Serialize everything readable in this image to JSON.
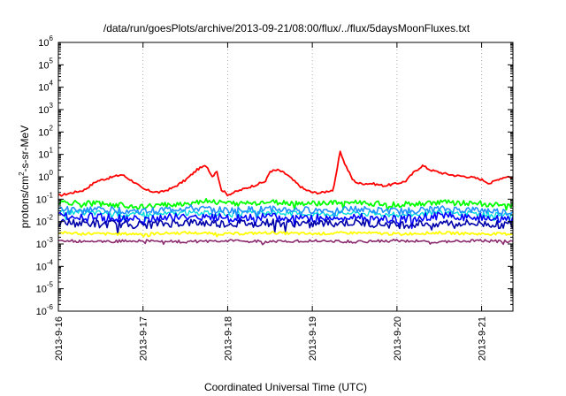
{
  "chart_data": {
    "type": "line",
    "title": "/data/run/goesPlots/archive/2013-09-21/08:00/flux/../flux/5daysMoonFluxes.txt",
    "xlabel": "Coordinated Universal Time (UTC)",
    "ylabel": {
      "pre": "protons/cm",
      "sup": "2",
      "post": "-s-sr-MeV"
    },
    "x_range_days": [
      0,
      5.37
    ],
    "x_ticks": [
      {
        "day": 0,
        "label": "2013-9-16"
      },
      {
        "day": 1,
        "label": "2013-9-17"
      },
      {
        "day": 2,
        "label": "2013-9-18"
      },
      {
        "day": 3,
        "label": "2013-9-19"
      },
      {
        "day": 4,
        "label": "2013-9-20"
      },
      {
        "day": 5,
        "label": "2013-9-21"
      }
    ],
    "y_scale": "log",
    "y_range": [
      1e-06,
      1000000.0
    ],
    "y_ticks": [
      {
        "exp": -6,
        "base": "10",
        "sup": "-6"
      },
      {
        "exp": -5,
        "base": "10",
        "sup": "-5"
      },
      {
        "exp": -4,
        "base": "10",
        "sup": "-4"
      },
      {
        "exp": -3,
        "base": "10",
        "sup": "-3"
      },
      {
        "exp": -2,
        "base": "10",
        "sup": "-2"
      },
      {
        "exp": -1,
        "base": "10",
        "sup": "-1"
      },
      {
        "exp": 0,
        "base": "10",
        "sup": "0"
      },
      {
        "exp": 1,
        "base": "10",
        "sup": "1"
      },
      {
        "exp": 2,
        "base": "10",
        "sup": "2"
      },
      {
        "exp": 3,
        "base": "10",
        "sup": "3"
      },
      {
        "exp": 4,
        "base": "10",
        "sup": "4"
      },
      {
        "exp": 5,
        "base": "10",
        "sup": "5"
      },
      {
        "exp": 6,
        "base": "10",
        "sup": "6"
      }
    ],
    "grid": true,
    "series": [
      {
        "color": "#ff0000",
        "width": 1.8,
        "jitter": 0.05,
        "points": [
          [
            0,
            -0.85
          ],
          [
            0.15,
            -0.72
          ],
          [
            0.3,
            -0.6
          ],
          [
            0.45,
            -0.2
          ],
          [
            0.6,
            -0.05
          ],
          [
            0.75,
            0.1
          ],
          [
            0.9,
            -0.25
          ],
          [
            1.0,
            -0.55
          ],
          [
            1.1,
            -0.65
          ],
          [
            1.2,
            -0.7
          ],
          [
            1.35,
            -0.5
          ],
          [
            1.5,
            -0.15
          ],
          [
            1.65,
            0.35
          ],
          [
            1.75,
            0.5
          ],
          [
            1.82,
            0.0
          ],
          [
            1.87,
            0.3
          ],
          [
            1.92,
            -0.55
          ],
          [
            2.0,
            -0.8
          ],
          [
            2.15,
            -0.6
          ],
          [
            2.3,
            -0.4
          ],
          [
            2.45,
            -0.2
          ],
          [
            2.5,
            0.25
          ],
          [
            2.6,
            0.3
          ],
          [
            2.7,
            0.1
          ],
          [
            2.8,
            -0.25
          ],
          [
            2.9,
            -0.55
          ],
          [
            3.0,
            -0.7
          ],
          [
            3.1,
            -0.72
          ],
          [
            3.2,
            -0.62
          ],
          [
            3.25,
            -0.6
          ],
          [
            3.3,
            0.5
          ],
          [
            3.33,
            1.15
          ],
          [
            3.37,
            0.7
          ],
          [
            3.42,
            0.3
          ],
          [
            3.48,
            -0.15
          ],
          [
            3.55,
            -0.3
          ],
          [
            3.7,
            -0.3
          ],
          [
            3.85,
            -0.4
          ],
          [
            4.0,
            -0.3
          ],
          [
            4.1,
            -0.2
          ],
          [
            4.2,
            0.2
          ],
          [
            4.3,
            0.5
          ],
          [
            4.4,
            0.3
          ],
          [
            4.55,
            0.15
          ],
          [
            4.7,
            0.05
          ],
          [
            4.85,
            0.0
          ],
          [
            5.0,
            -0.12
          ],
          [
            5.1,
            -0.3
          ],
          [
            5.2,
            -0.1
          ],
          [
            5.3,
            0.02
          ],
          [
            5.37,
            -0.05
          ]
        ]
      },
      {
        "color": "#00ff00",
        "width": 1.8,
        "jitter": 0.12,
        "points": [
          [
            0,
            -1.15
          ],
          [
            0.5,
            -1.2
          ],
          [
            1.0,
            -1.35
          ],
          [
            1.3,
            -1.25
          ],
          [
            1.5,
            -1.2
          ],
          [
            1.75,
            -1.05
          ],
          [
            2.0,
            -1.2
          ],
          [
            2.5,
            -1.15
          ],
          [
            3.0,
            -1.2
          ],
          [
            3.5,
            -1.15
          ],
          [
            4.0,
            -1.25
          ],
          [
            4.5,
            -1.15
          ],
          [
            5.0,
            -1.2
          ],
          [
            5.37,
            -1.3
          ]
        ]
      },
      {
        "color": "#00dddd",
        "width": 1.4,
        "jitter": 0.12,
        "points": [
          [
            0,
            -1.6
          ],
          [
            0.5,
            -1.6
          ],
          [
            1.0,
            -1.7
          ],
          [
            1.5,
            -1.6
          ],
          [
            2.0,
            -1.65
          ],
          [
            2.5,
            -1.6
          ],
          [
            3.0,
            -1.65
          ],
          [
            3.5,
            -1.6
          ],
          [
            4.0,
            -1.7
          ],
          [
            4.5,
            -1.6
          ],
          [
            5.0,
            -1.65
          ],
          [
            5.37,
            -1.7
          ]
        ]
      },
      {
        "color": "#1e90ff",
        "width": 1.6,
        "jitter": 0.15,
        "points": [
          [
            0,
            -1.45
          ],
          [
            0.5,
            -1.45
          ],
          [
            1.0,
            -1.55
          ],
          [
            1.5,
            -1.4
          ],
          [
            2.0,
            -1.5
          ],
          [
            2.5,
            -1.45
          ],
          [
            3.0,
            -1.5
          ],
          [
            3.5,
            -1.45
          ],
          [
            4.0,
            -1.55
          ],
          [
            4.5,
            -1.45
          ],
          [
            5.0,
            -1.5
          ],
          [
            5.37,
            -1.6
          ]
        ]
      },
      {
        "color": "#0000ff",
        "width": 1.6,
        "jitter": 0.18,
        "points": [
          [
            0,
            -1.75
          ],
          [
            0.5,
            -1.8
          ],
          [
            1.0,
            -1.9
          ],
          [
            1.5,
            -1.75
          ],
          [
            2.0,
            -1.85
          ],
          [
            2.5,
            -1.8
          ],
          [
            3.0,
            -1.85
          ],
          [
            3.5,
            -1.8
          ],
          [
            4.0,
            -1.9
          ],
          [
            4.5,
            -1.75
          ],
          [
            5.0,
            -1.8
          ],
          [
            5.37,
            -1.95
          ]
        ]
      },
      {
        "color": "#0000aa",
        "width": 1.6,
        "jitter": 0.18,
        "points": [
          [
            0,
            -2.05
          ],
          [
            0.5,
            -2.1
          ],
          [
            1.0,
            -2.15
          ],
          [
            1.5,
            -2.05
          ],
          [
            2.0,
            -2.1
          ],
          [
            2.5,
            -2.05
          ],
          [
            3.0,
            -2.1
          ],
          [
            3.5,
            -2.05
          ],
          [
            4.0,
            -2.15
          ],
          [
            4.5,
            -2.05
          ],
          [
            5.0,
            -2.1
          ],
          [
            5.37,
            -2.15
          ]
        ]
      },
      {
        "color": "#ffff00",
        "width": 1.8,
        "jitter": 0.06,
        "points": [
          [
            0,
            -2.5
          ],
          [
            0.5,
            -2.55
          ],
          [
            1.0,
            -2.55
          ],
          [
            1.5,
            -2.5
          ],
          [
            2.0,
            -2.55
          ],
          [
            2.5,
            -2.5
          ],
          [
            3.0,
            -2.55
          ],
          [
            3.5,
            -2.5
          ],
          [
            4.0,
            -2.55
          ],
          [
            4.5,
            -2.5
          ],
          [
            5.0,
            -2.55
          ],
          [
            5.37,
            -2.55
          ]
        ]
      },
      {
        "color": "#8b2a6e",
        "width": 1.6,
        "jitter": 0.06,
        "points": [
          [
            0,
            -2.85
          ],
          [
            0.5,
            -2.9
          ],
          [
            1.0,
            -2.85
          ],
          [
            1.5,
            -2.9
          ],
          [
            2.0,
            -2.85
          ],
          [
            2.5,
            -2.9
          ],
          [
            3.0,
            -2.85
          ],
          [
            3.5,
            -2.9
          ],
          [
            4.0,
            -2.85
          ],
          [
            4.5,
            -2.9
          ],
          [
            5.0,
            -2.85
          ],
          [
            5.37,
            -2.9
          ]
        ]
      }
    ]
  }
}
